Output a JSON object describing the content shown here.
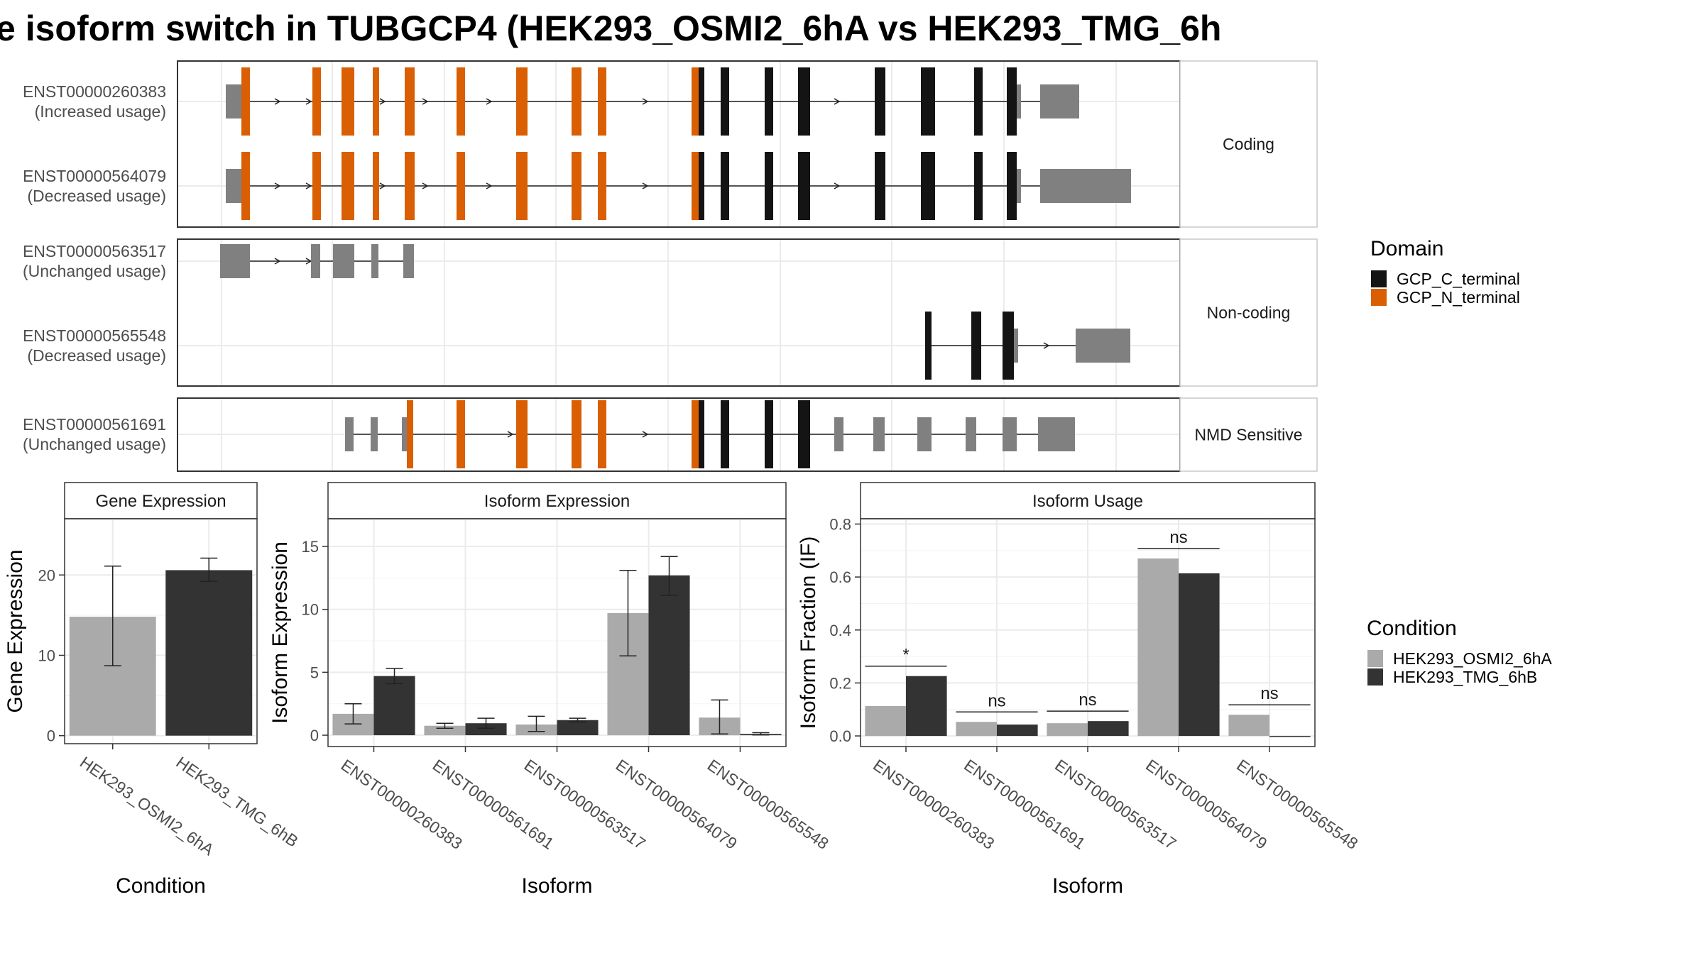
{
  "title": "e isoform switch in TUBGCP4 (HEK293_OSMI2_6hA vs HEK293_TMG_6h",
  "colors": {
    "GCP_C_terminal": "#141414",
    "GCP_N_terminal": "#d95f02",
    "utr": "#808080",
    "osmi": "#aaaaaa",
    "tmg": "#333333"
  },
  "legend_domain": {
    "title": "Domain",
    "items": [
      {
        "label": "GCP_C_terminal",
        "color": "#141414"
      },
      {
        "label": "GCP_N_terminal",
        "color": "#d95f02"
      }
    ]
  },
  "legend_condition": {
    "title": "Condition",
    "items": [
      {
        "label": "HEK293_OSMI2_6hA",
        "color": "#aaaaaa"
      },
      {
        "label": "HEK293_TMG_6hB",
        "color": "#333333"
      }
    ]
  },
  "structure": {
    "panels": [
      {
        "strip": "Coding",
        "transcripts": [
          {
            "id": "ENST00000260383",
            "usage": "(Increased usage)"
          },
          {
            "id": "ENST00000564079",
            "usage": "(Decreased usage)"
          }
        ]
      },
      {
        "strip": "Non-coding",
        "transcripts": [
          {
            "id": "ENST00000563517",
            "usage": "(Unchanged usage)"
          },
          {
            "id": "ENST00000565548",
            "usage": "(Decreased usage)"
          }
        ]
      },
      {
        "strip": "NMD Sensitive",
        "transcripts": [
          {
            "id": "ENST00000561691",
            "usage": "(Unchanged usage)"
          }
        ]
      }
    ]
  },
  "chart_data": [
    {
      "type": "bar",
      "title": "Gene Expression",
      "xlabel": "Condition",
      "ylabel": "Gene Expression",
      "categories": [
        "HEK293_OSMI2_6hA",
        "HEK293_TMG_6hB"
      ],
      "values": [
        14.8,
        20.6
      ],
      "error_low": [
        8.7,
        19.2
      ],
      "error_high": [
        21.1,
        22.1
      ],
      "ylim": [
        -1,
        27
      ],
      "yticks": [
        0,
        10,
        20
      ]
    },
    {
      "type": "bar",
      "title": "Isoform Expression",
      "xlabel": "Isoform",
      "ylabel": "Isoform Expression",
      "categories": [
        "ENST00000260383",
        "ENST00000561691",
        "ENST00000563517",
        "ENST00000564079",
        "ENST00000565548"
      ],
      "series": [
        {
          "name": "HEK293_OSMI2_6hA",
          "values": [
            1.7,
            0.75,
            0.85,
            9.7,
            1.4
          ],
          "error_low": [
            0.9,
            0.55,
            0.3,
            6.3,
            0.1
          ],
          "error_high": [
            2.5,
            0.95,
            1.5,
            13.1,
            2.8
          ]
        },
        {
          "name": "HEK293_TMG_6hB",
          "values": [
            4.7,
            0.95,
            1.2,
            12.7,
            0.1
          ],
          "error_low": [
            4.1,
            0.55,
            1.05,
            11.1,
            0.02
          ],
          "error_high": [
            5.3,
            1.35,
            1.35,
            14.2,
            0.2
          ]
        }
      ],
      "ylim": [
        -0.9,
        17.2
      ],
      "yticks": [
        0,
        5,
        10,
        15
      ]
    },
    {
      "type": "bar",
      "title": "Isoform Usage",
      "xlabel": "Isoform",
      "ylabel": "Isoform Fraction (IF)",
      "categories": [
        "ENST00000260383",
        "ENST00000561691",
        "ENST00000563517",
        "ENST00000564079",
        "ENST00000565548"
      ],
      "series": [
        {
          "name": "HEK293_OSMI2_6hA",
          "values": [
            0.113,
            0.053,
            0.048,
            0.67,
            0.08
          ]
        },
        {
          "name": "HEK293_TMG_6hB",
          "values": [
            0.226,
            0.043,
            0.056,
            0.614,
            0.0
          ]
        }
      ],
      "significance": [
        "*",
        "ns",
        "ns",
        "ns",
        "ns"
      ],
      "ylim": [
        -0.04,
        0.82
      ],
      "yticks": [
        0.0,
        0.2,
        0.4,
        0.6,
        0.8
      ],
      "ytick_labels": [
        "0.0",
        "0.2",
        "0.4",
        "0.6",
        "0.8"
      ]
    }
  ]
}
